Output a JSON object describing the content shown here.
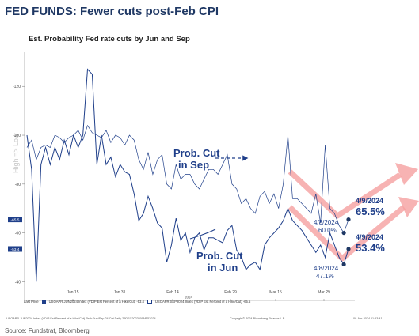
{
  "title": "FED FUNDS: Fewer cuts post-Feb CPI",
  "source": "Source: Fundstrat, Bloomberg",
  "footer": {
    "index_line": "USOAPR JUN2024 Index (VDIP Est Percent of a Hike/Cut) Prob Jun/Sep 24 Cut Daily 29DEC2023-09APR2024",
    "copyright": "Copyright© 2024 Bloomberg Finance L.P.",
    "timestamp": "09-Apr-2024 11:53:41"
  },
  "legend": {
    "last_price_label": "Last Price",
    "jun_entry": "USOAPR JUN2024 Index (VDIP Est Percent of a Hike/Cut) -53.4",
    "sep_entry": "USOAPR SEP2024 Index (VDIP Est Percent of a Hike/Cut) -65.5"
  },
  "chart_data": {
    "type": "line",
    "title": "Est. Probability Fed rate cuts by Jun and Sep",
    "ylabel": "High => Low",
    "ylim": [
      -134,
      -33
    ],
    "y_ticks": [
      -120,
      -100,
      -80,
      -60,
      -40
    ],
    "x_ticks": [
      "Jan 15",
      "Jan 31",
      "Feb 14",
      "Feb 29",
      "Mar 15",
      "Mar 29"
    ],
    "x_sub_label": "2024",
    "last_value_tags": [
      "-65.5",
      "-53.4"
    ],
    "series": [
      {
        "name": "USOAPR JUN2024 Index (VDIP Est Percent of a Hike/Cut)",
        "annotation": "Prob. Cut in Jun",
        "color": "#1f3f8a",
        "x": [
          0,
          1,
          2,
          3,
          4,
          5,
          6,
          7,
          8,
          9,
          10,
          11,
          12,
          13,
          14,
          15,
          16,
          17,
          18,
          19,
          20,
          21,
          22,
          23,
          24,
          25,
          26,
          27,
          28,
          29,
          30,
          31,
          32,
          33,
          34,
          35,
          36,
          37,
          38,
          39,
          40,
          41,
          42,
          43,
          44,
          45,
          46,
          47,
          48,
          49,
          50,
          51,
          52,
          53,
          54,
          55,
          56,
          57,
          58,
          59,
          60,
          61,
          62,
          63,
          64,
          65,
          66,
          67,
          68,
          69
        ],
        "values": [
          -100,
          -86,
          -40,
          -88,
          -95,
          -88,
          -95,
          -90,
          -98,
          -92,
          -100,
          -95,
          -100,
          -127,
          -125,
          -88,
          -100,
          -88,
          -91,
          -83,
          -88,
          -85,
          -84,
          -76,
          -65,
          -68,
          -75,
          -70,
          -64,
          -62,
          -48,
          -55,
          -66,
          -57,
          -60,
          -52,
          -58,
          -60,
          -53,
          -58,
          -58,
          -57,
          -56,
          -61,
          -63,
          -53,
          -50,
          -45,
          -47,
          -48,
          -45,
          -55,
          -58,
          -60,
          -62,
          -65,
          -70,
          -65,
          -63,
          -61,
          -58,
          -55,
          -52,
          -55,
          -50,
          -60,
          -55,
          -50,
          -47.1,
          -53.4
        ],
        "last": -53.4
      },
      {
        "name": "USOAPR SEP2024 Index (VDIP Est Percent of a Hike/Cut)",
        "annotation": "Prob. Cut in Sep",
        "color": "#1f3f8a",
        "x": [
          0,
          1,
          2,
          3,
          4,
          5,
          6,
          7,
          8,
          9,
          10,
          11,
          12,
          13,
          14,
          15,
          16,
          17,
          18,
          19,
          20,
          21,
          22,
          23,
          24,
          25,
          26,
          27,
          28,
          29,
          30,
          31,
          32,
          33,
          34,
          35,
          36,
          37,
          38,
          39,
          40,
          41,
          42,
          43,
          44,
          45,
          46,
          47,
          48,
          49,
          50,
          51,
          52,
          53,
          54,
          55,
          56,
          57,
          58,
          59,
          60,
          61,
          62,
          63,
          64,
          65,
          66,
          67,
          68,
          69
        ],
        "values": [
          -95,
          -98,
          -90,
          -95,
          -96,
          -95,
          -100,
          -99,
          -97,
          -99,
          -100,
          -102,
          -98,
          -104,
          -101,
          -100,
          -99,
          -102,
          -97,
          -100,
          -99,
          -96,
          -100,
          -98,
          -90,
          -86,
          -93,
          -84,
          -90,
          -92,
          -80,
          -78,
          -88,
          -82,
          -84,
          -84,
          -80,
          -78,
          -82,
          -86,
          -86,
          -84,
          -88,
          -92,
          -80,
          -78,
          -72,
          -74,
          -70,
          -68,
          -75,
          -77,
          -72,
          -76,
          -70,
          -80,
          -100,
          -74,
          -74,
          -72,
          -70,
          -68,
          -76,
          -64,
          -96,
          -70,
          -68,
          -63,
          -60.0,
          -65.5
        ],
        "last": -65.5
      }
    ],
    "annotations": [
      {
        "text": "4/8/2024",
        "value": "60.0%",
        "series": "sep"
      },
      {
        "text": "4/9/2024",
        "value": "65.5%",
        "series": "sep"
      },
      {
        "text": "4/8/2024",
        "value": "47.1%",
        "series": "jun"
      },
      {
        "text": "4/9/2024",
        "value": "53.4%",
        "series": "jun"
      }
    ],
    "grid": false
  }
}
